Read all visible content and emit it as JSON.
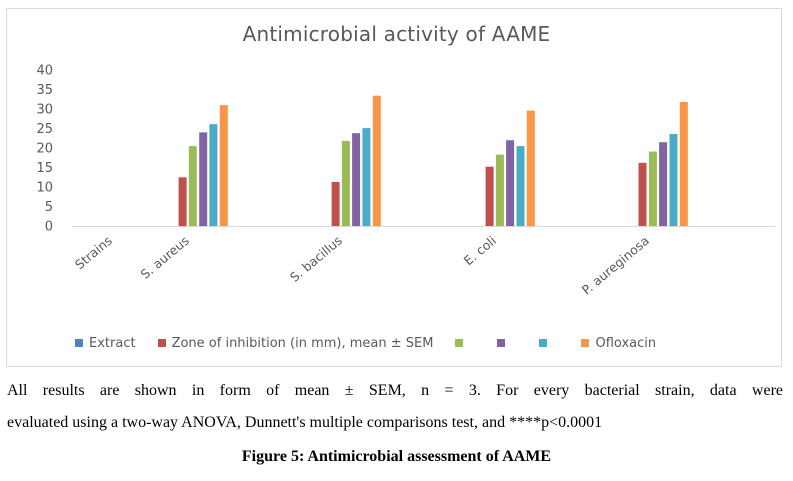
{
  "chart_data": {
    "type": "bar",
    "title": "Antimicrobial activity of AAME",
    "xlabel": "",
    "ylabel": "",
    "ylim": [
      0,
      40
    ],
    "yticks": [
      0,
      5,
      10,
      15,
      20,
      25,
      30,
      35,
      40
    ],
    "grid": false,
    "legend_position": "bottom",
    "categories": [
      "Strains",
      "S. aureus",
      "S. bacillus",
      "E. coli",
      "P. aureginosa"
    ],
    "series": [
      {
        "name": "Extract",
        "color": "#4f81bd",
        "values": [
          null,
          null,
          null,
          null,
          null
        ]
      },
      {
        "name": "Zone of inhibition (in mm), mean ± SEM",
        "color": "#c0504d",
        "values": [
          null,
          12.5,
          11.3,
          15.2,
          16.2
        ]
      },
      {
        "name": "",
        "color": "#9bbb59",
        "values": [
          null,
          20.5,
          21.8,
          18.3,
          19.1
        ]
      },
      {
        "name": "",
        "color": "#8064a2",
        "values": [
          null,
          24.0,
          23.8,
          22.0,
          21.5
        ]
      },
      {
        "name": "",
        "color": "#4bacc6",
        "values": [
          null,
          26.1,
          25.1,
          20.5,
          23.6
        ]
      },
      {
        "name": "Ofloxacin",
        "color": "#f79646",
        "values": [
          null,
          31.0,
          33.4,
          29.6,
          31.8
        ]
      }
    ]
  },
  "caption": {
    "line1": "All results are shown in form of mean ± SEM, n = 3. For every bacterial strain, data were",
    "line2": "evaluated using a two-way ANOVA, Dunnett's multiple comparisons test, and ****p<0.0001",
    "figure_label": "Figure 5: Antimicrobial assessment of AAME"
  }
}
